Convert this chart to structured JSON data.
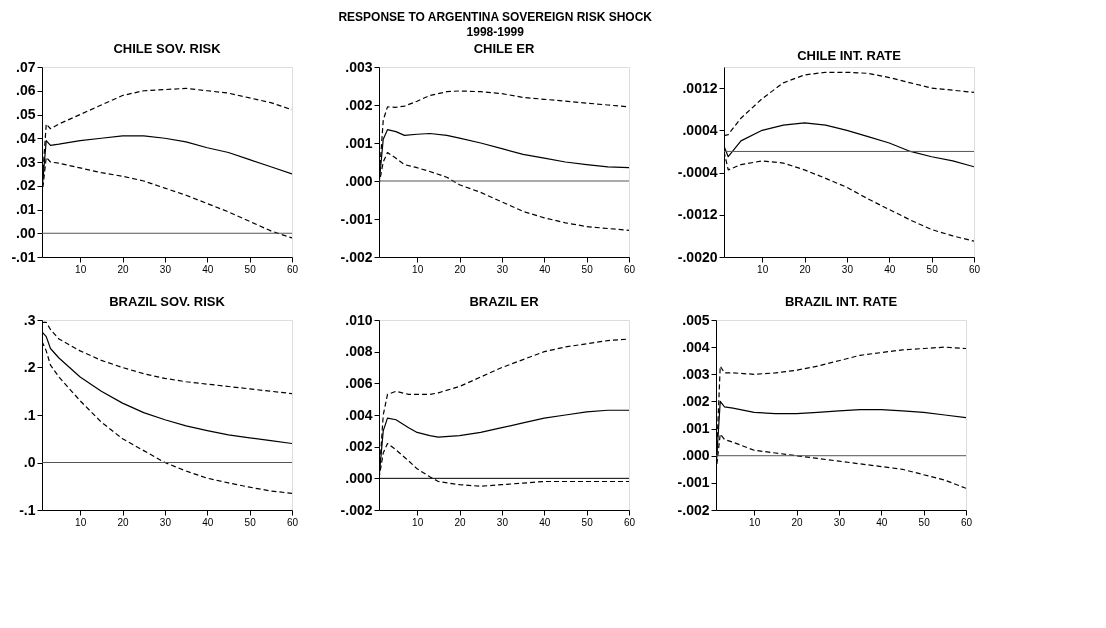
{
  "chart_data": [
    {
      "type": "line",
      "title": "CHILE  SOV. RISK",
      "annotations": [
        "RESPONSE TO ARGENTINA SOVEREIGN RISK SHOCK",
        "1998-1999"
      ],
      "x": [
        1,
        2,
        3,
        5,
        10,
        15,
        20,
        25,
        30,
        35,
        40,
        45,
        50,
        55,
        60
      ],
      "xlim": [
        1,
        60
      ],
      "xticks": [
        10,
        20,
        30,
        40,
        50,
        60
      ],
      "ylim": [
        -0.01,
        0.07
      ],
      "yticks": [
        {
          "value": 0.07,
          "label": ".07"
        },
        {
          "value": 0.06,
          "label": ".06"
        },
        {
          "value": 0.05,
          "label": ".05"
        },
        {
          "value": 0.04,
          "label": ".04"
        },
        {
          "value": 0.03,
          "label": ".03"
        },
        {
          "value": 0.02,
          "label": ".02"
        },
        {
          "value": 0.01,
          "label": ".01"
        },
        {
          "value": 0,
          "label": ".00"
        },
        {
          "value": -0.01,
          "label": "-.01"
        }
      ],
      "grid": false,
      "ref_lines": [
        {
          "axis": "y",
          "value": 0,
          "color": "#555555"
        }
      ],
      "series": [
        {
          "color": "#000000",
          "line_style": "solid",
          "values": [
            0.018,
            0.039,
            0.037,
            0.0375,
            0.039,
            0.04,
            0.041,
            0.041,
            0.04,
            0.0385,
            0.036,
            0.034,
            0.031,
            0.028,
            0.025
          ]
        },
        {
          "color": "#000000",
          "line_style": "dashed",
          "values": [
            0.02,
            0.046,
            0.044,
            0.046,
            0.05,
            0.054,
            0.058,
            0.06,
            0.0605,
            0.061,
            0.06,
            0.059,
            0.057,
            0.055,
            0.052
          ]
        },
        {
          "color": "#000000",
          "line_style": "dashed",
          "values": [
            0.016,
            0.032,
            0.03,
            0.0295,
            0.0275,
            0.0255,
            0.024,
            0.022,
            0.019,
            0.016,
            0.0125,
            0.009,
            0.005,
            0.001,
            -0.002
          ]
        }
      ]
    },
    {
      "type": "line",
      "title": "CHILE  ER",
      "x": [
        1,
        2,
        3,
        5,
        7,
        10,
        13,
        17,
        20,
        25,
        30,
        35,
        40,
        45,
        50,
        55,
        60
      ],
      "xlim": [
        1,
        60
      ],
      "xticks": [
        10,
        20,
        30,
        40,
        50,
        60
      ],
      "ylim": [
        -0.002,
        0.003
      ],
      "yticks": [
        {
          "value": 0.003,
          "label": ".003"
        },
        {
          "value": 0.002,
          "label": ".002"
        },
        {
          "value": 0.001,
          "label": ".001"
        },
        {
          "value": 0,
          "label": ".000"
        },
        {
          "value": -0.001,
          "label": "-.001"
        },
        {
          "value": -0.002,
          "label": "-.002"
        }
      ],
      "grid": false,
      "ref_lines": [
        {
          "axis": "y",
          "value": 0,
          "color": "#555555"
        }
      ],
      "series": [
        {
          "color": "#000000",
          "line_style": "solid",
          "values": [
            -0.0001,
            0.0011,
            0.00135,
            0.0013,
            0.0012,
            0.00123,
            0.00125,
            0.0012,
            0.00113,
            0.001,
            0.00085,
            0.0007,
            0.0006,
            0.0005,
            0.00043,
            0.00037,
            0.00035
          ]
        },
        {
          "color": "#000000",
          "line_style": "dashed",
          "values": [
            0.0,
            0.0016,
            0.00195,
            0.00194,
            0.00197,
            0.0021,
            0.00225,
            0.00235,
            0.00237,
            0.00235,
            0.0023,
            0.0022,
            0.00215,
            0.0021,
            0.00205,
            0.002,
            0.00195
          ]
        },
        {
          "color": "#000000",
          "line_style": "dashed",
          "values": [
            -0.0001,
            0.0005,
            0.00075,
            0.0006,
            0.00043,
            0.00035,
            0.00025,
            0.0001,
            -0.0001,
            -0.0003,
            -0.00055,
            -0.0008,
            -0.00097,
            -0.0011,
            -0.0012,
            -0.00125,
            -0.0013
          ]
        }
      ]
    },
    {
      "type": "line",
      "title": "CHILE  INT. RATE",
      "x": [
        1,
        2,
        5,
        10,
        15,
        20,
        25,
        30,
        35,
        40,
        45,
        50,
        55,
        60
      ],
      "xlim": [
        1,
        60
      ],
      "xticks": [
        10,
        20,
        30,
        40,
        50,
        60
      ],
      "ylim": [
        -0.002,
        0.0016
      ],
      "yticks": [
        {
          "value": 0.0012,
          "label": ".0012"
        },
        {
          "value": 0.0004,
          "label": ".0004"
        },
        {
          "value": -0.0004,
          "label": "-.0004"
        },
        {
          "value": -0.0012,
          "label": "-.0012"
        },
        {
          "value": -0.002,
          "label": "-.0020"
        }
      ],
      "grid": false,
      "ref_lines": [
        {
          "axis": "y",
          "value": 0,
          "color": "#555555"
        }
      ],
      "series": [
        {
          "color": "#000000",
          "line_style": "solid",
          "values": [
            0.0001,
            -0.0001,
            0.0002,
            0.0004,
            0.0005,
            0.00054,
            0.0005,
            0.0004,
            0.00028,
            0.00016,
            0.0,
            -0.0001,
            -0.00018,
            -0.00029
          ]
        },
        {
          "color": "#000000",
          "line_style": "dashed",
          "values": [
            0.0003,
            0.00032,
            0.00063,
            0.001,
            0.0013,
            0.00145,
            0.0015,
            0.0015,
            0.00148,
            0.0014,
            0.0013,
            0.0012,
            0.00116,
            0.00112
          ]
        },
        {
          "color": "#000000",
          "line_style": "dashed",
          "values": [
            0.0,
            -0.00035,
            -0.00025,
            -0.00018,
            -0.00022,
            -0.00035,
            -0.00051,
            -0.00068,
            -0.0009,
            -0.0011,
            -0.0013,
            -0.00148,
            -0.0016,
            -0.0017
          ]
        }
      ]
    },
    {
      "type": "line",
      "title": "BRAZIL  SOV. RISK",
      "x": [
        1,
        2,
        3,
        5,
        10,
        15,
        20,
        25,
        30,
        35,
        40,
        45,
        50,
        55,
        60
      ],
      "xlim": [
        1,
        60
      ],
      "xticks": [
        10,
        20,
        30,
        40,
        50,
        60
      ],
      "ylim": [
        -0.1,
        0.3
      ],
      "yticks": [
        {
          "value": 0.3,
          "label": ".3"
        },
        {
          "value": 0.2,
          "label": ".2"
        },
        {
          "value": 0.1,
          "label": ".1"
        },
        {
          "value": 0,
          "label": ".0"
        },
        {
          "value": -0.1,
          "label": "-.1"
        }
      ],
      "grid": false,
      "ref_lines": [
        {
          "axis": "y",
          "value": 0,
          "color": "#555555"
        }
      ],
      "series": [
        {
          "color": "#000000",
          "line_style": "solid",
          "values": [
            0.275,
            0.265,
            0.24,
            0.22,
            0.18,
            0.15,
            0.125,
            0.105,
            0.09,
            0.077,
            0.067,
            0.058,
            0.052,
            0.046,
            0.04
          ]
        },
        {
          "color": "#000000",
          "line_style": "dashed",
          "values": [
            0.295,
            0.295,
            0.28,
            0.26,
            0.235,
            0.215,
            0.2,
            0.187,
            0.177,
            0.17,
            0.165,
            0.16,
            0.155,
            0.15,
            0.145
          ]
        },
        {
          "color": "#000000",
          "line_style": "dashed",
          "values": [
            0.255,
            0.235,
            0.205,
            0.18,
            0.13,
            0.085,
            0.05,
            0.025,
            0.0,
            -0.018,
            -0.033,
            -0.043,
            -0.052,
            -0.06,
            -0.065
          ]
        }
      ]
    },
    {
      "type": "line",
      "title": "BRAZIL  ER",
      "x": [
        1,
        2,
        3,
        5,
        8,
        10,
        13,
        15,
        20,
        25,
        30,
        35,
        40,
        45,
        50,
        55,
        60
      ],
      "xlim": [
        1,
        60
      ],
      "xticks": [
        10,
        20,
        30,
        40,
        50,
        60
      ],
      "ylim": [
        -0.002,
        0.01
      ],
      "yticks": [
        {
          "value": 0.01,
          "label": ".010"
        },
        {
          "value": 0.008,
          "label": ".008"
        },
        {
          "value": 0.006,
          "label": ".006"
        },
        {
          "value": 0.004,
          "label": ".004"
        },
        {
          "value": 0.002,
          "label": ".002"
        },
        {
          "value": 0,
          "label": ".000"
        },
        {
          "value": -0.002,
          "label": "-.002"
        }
      ],
      "grid": false,
      "ref_lines": [
        {
          "axis": "y",
          "value": 0,
          "color": "#000000"
        }
      ],
      "series": [
        {
          "color": "#000000",
          "line_style": "solid",
          "values": [
            0.0,
            0.003,
            0.0038,
            0.0037,
            0.0032,
            0.0029,
            0.0027,
            0.0026,
            0.0027,
            0.0029,
            0.0032,
            0.0035,
            0.0038,
            0.004,
            0.0042,
            0.0043,
            0.0043
          ]
        },
        {
          "color": "#000000",
          "line_style": "dashed",
          "values": [
            0.0,
            0.004,
            0.0053,
            0.0055,
            0.0053,
            0.0053,
            0.0053,
            0.0054,
            0.0058,
            0.0064,
            0.007,
            0.0075,
            0.008,
            0.0083,
            0.0085,
            0.0087,
            0.0088
          ]
        },
        {
          "color": "#000000",
          "line_style": "dashed",
          "values": [
            0.0,
            0.0016,
            0.0022,
            0.0018,
            0.0011,
            0.0006,
            0.0001,
            -0.0002,
            -0.0004,
            -0.0005,
            -0.0004,
            -0.0003,
            -0.0002,
            -0.0002,
            -0.0002,
            -0.0002,
            -0.0002
          ]
        }
      ]
    },
    {
      "type": "line",
      "title": "BRAZIL  INT. RATE",
      "x": [
        1,
        2,
        3,
        5,
        10,
        15,
        20,
        25,
        30,
        35,
        40,
        45,
        50,
        55,
        60
      ],
      "xlim": [
        1,
        60
      ],
      "xticks": [
        10,
        20,
        30,
        40,
        50,
        60
      ],
      "ylim": [
        -0.002,
        0.005
      ],
      "yticks": [
        {
          "value": 0.005,
          "label": ".005"
        },
        {
          "value": 0.004,
          "label": ".004"
        },
        {
          "value": 0.003,
          "label": ".003"
        },
        {
          "value": 0.002,
          "label": ".002"
        },
        {
          "value": 0.001,
          "label": ".001"
        },
        {
          "value": 0,
          "label": ".000"
        },
        {
          "value": -0.001,
          "label": "-.001"
        },
        {
          "value": -0.002,
          "label": "-.002"
        }
      ],
      "grid": false,
      "ref_lines": [
        {
          "axis": "y",
          "value": 0,
          "color": "#555555"
        }
      ],
      "series": [
        {
          "color": "#000000",
          "line_style": "solid",
          "values": [
            -0.0005,
            0.002,
            0.0018,
            0.00175,
            0.0016,
            0.00155,
            0.00155,
            0.0016,
            0.00165,
            0.0017,
            0.0017,
            0.00165,
            0.0016,
            0.0015,
            0.0014
          ]
        },
        {
          "color": "#000000",
          "line_style": "dashed",
          "values": [
            -0.0005,
            0.0033,
            0.00305,
            0.00305,
            0.003,
            0.00305,
            0.00315,
            0.0033,
            0.0035,
            0.0037,
            0.0038,
            0.0039,
            0.00395,
            0.004,
            0.00395
          ]
        },
        {
          "color": "#000000",
          "line_style": "dashed",
          "values": [
            -0.0006,
            0.0008,
            0.0006,
            0.0005,
            0.0002,
            0.0001,
            0.0,
            -0.0001,
            -0.0002,
            -0.0003,
            -0.0004,
            -0.0005,
            -0.0007,
            -0.0009,
            -0.0012
          ]
        }
      ]
    }
  ]
}
